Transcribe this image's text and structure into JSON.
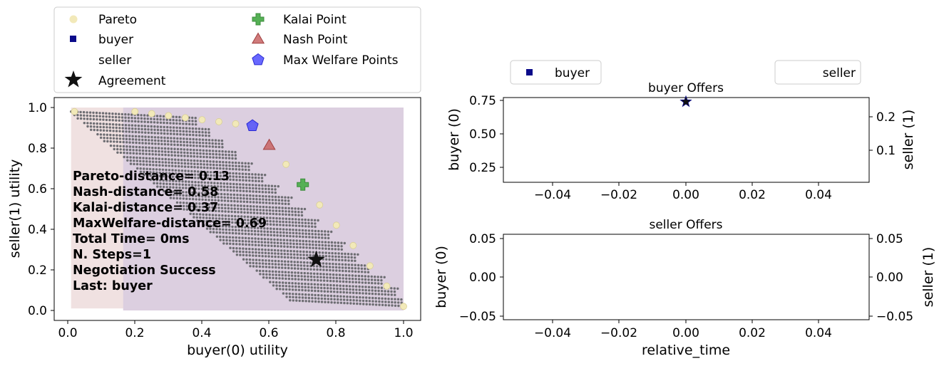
{
  "colors": {
    "pareto": "#f2e9b9",
    "pareto_edge": "#d9cf95",
    "buyer": "#0b0b8a",
    "kalai": "#55b055",
    "nash": "#c86464",
    "welfare": "#4d4dff",
    "agreement": "#111111",
    "outcomes": "#6d6d72",
    "buyer_region": "#f0e1e1",
    "seller_region": "#dccfe0"
  },
  "legend_main": {
    "pareto": "Pareto",
    "buyer": "buyer",
    "seller": "seller",
    "agreement": "Agreement",
    "kalai": "Kalai Point",
    "nash": "Nash Point",
    "welfare": "Max Welfare Points"
  },
  "legend_right": {
    "buyer": "buyer",
    "seller": "seller"
  },
  "annotations": [
    "Pareto-distance= 0.13",
    "Nash-distance= 0.58",
    "Kalai-distance= 0.37",
    "MaxWelfare-distance= 0.69",
    "Total Time= 0ms",
    "N. Steps=1",
    "Negotiation Success",
    "Last: buyer"
  ],
  "chart_data": [
    {
      "type": "scatter",
      "xlabel": "buyer(0) utility",
      "ylabel": "seller(1) utility",
      "xlim": [
        -0.04,
        1.05
      ],
      "ylim": [
        -0.05,
        1.05
      ],
      "xticks": [
        "0.0",
        "0.2",
        "0.4",
        "0.6",
        "0.8",
        "1.0"
      ],
      "yticks": [
        "0.0",
        "0.2",
        "0.4",
        "0.6",
        "0.8",
        "1.0"
      ],
      "pareto": [
        [
          0.02,
          0.98
        ],
        [
          0.2,
          0.98
        ],
        [
          0.25,
          0.97
        ],
        [
          0.3,
          0.96
        ],
        [
          0.35,
          0.95
        ],
        [
          0.4,
          0.94
        ],
        [
          0.45,
          0.93
        ],
        [
          0.5,
          0.92
        ],
        [
          0.55,
          0.91
        ],
        [
          0.65,
          0.72
        ],
        [
          0.75,
          0.52
        ],
        [
          0.8,
          0.42
        ],
        [
          0.85,
          0.32
        ],
        [
          0.9,
          0.22
        ],
        [
          0.95,
          0.12
        ],
        [
          1.0,
          0.02
        ]
      ],
      "kalai": [
        0.7,
        0.62
      ],
      "nash": [
        0.6,
        0.81
      ],
      "max_welfare": [
        0.55,
        0.91
      ],
      "agreement": [
        0.74,
        0.25
      ],
      "buyer_region": {
        "x": [
          0.01,
          1.0
        ],
        "y": [
          0.01,
          1.0
        ]
      },
      "seller_region": {
        "x": [
          0.165,
          1.0
        ],
        "y": [
          0.0,
          1.0
        ]
      }
    },
    {
      "type": "scatter",
      "title": "buyer Offers",
      "ylabel": "buyer (0)",
      "ylabel_right": "seller (1)",
      "xlim": [
        -0.055,
        0.055
      ],
      "ylim": [
        0.14,
        0.77
      ],
      "ylim_right": [
        0.0125,
        0.2445
      ],
      "xticks": [
        "−0.04",
        "−0.02",
        "0.00",
        "0.02",
        "0.04"
      ],
      "yticks": [
        "0.25",
        "0.50",
        "0.75"
      ],
      "yticks_right": [
        "0.1",
        "0.2"
      ],
      "points": [
        {
          "x": 0.0,
          "y": 0.74,
          "marker": "star"
        }
      ]
    },
    {
      "type": "scatter",
      "title": "seller Offers",
      "xlabel": "relative_time",
      "ylabel": "buyer (0)",
      "ylabel_right": "seller (1)",
      "xlim": [
        -0.055,
        0.055
      ],
      "ylim": [
        -0.055,
        0.055
      ],
      "xticks": [
        "−0.04",
        "−0.02",
        "0.00",
        "0.02",
        "0.04"
      ],
      "yticks": [
        "−0.05",
        "0.00",
        "0.05"
      ],
      "yticks_right": [
        "−0.05",
        "0.00",
        "0.05"
      ],
      "points": []
    }
  ]
}
